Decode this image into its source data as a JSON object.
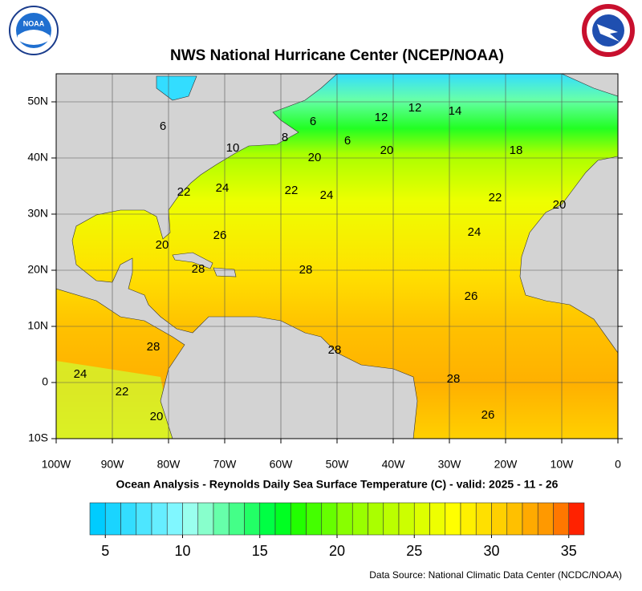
{
  "map_data": {
    "type": "sst-map",
    "title": "NWS National Hurricane Center (NCEP/NOAA)",
    "subtitle": "Ocean Analysis - Reynolds Daily Sea Surface Temperature (C) - valid: 2025 - 11 - 26",
    "source": "Data Source: National Climatic Data Center (NCDC/NOAA)",
    "logo_left": "NOAA",
    "xlim": [
      -100,
      0
    ],
    "ylim": [
      -10,
      55
    ],
    "xticks": [
      {
        "value": -100,
        "label": "100W"
      },
      {
        "value": -90,
        "label": "90W"
      },
      {
        "value": -80,
        "label": "80W"
      },
      {
        "value": -70,
        "label": "70W"
      },
      {
        "value": -60,
        "label": "60W"
      },
      {
        "value": -50,
        "label": "50W"
      },
      {
        "value": -40,
        "label": "40W"
      },
      {
        "value": -30,
        "label": "30W"
      },
      {
        "value": -20,
        "label": "20W"
      },
      {
        "value": -10,
        "label": "10W"
      },
      0
    ],
    "yticks": [
      {
        "value": 50,
        "label": "50N"
      },
      {
        "value": 40,
        "label": "40N"
      },
      {
        "value": 30,
        "label": "30N"
      },
      {
        "value": 20,
        "label": "20N"
      },
      {
        "value": 10,
        "label": "10N"
      },
      0,
      {
        "value": -10,
        "label": "10S"
      }
    ],
    "grid": true,
    "contour_labels": [
      12,
      14,
      12,
      6,
      6,
      8,
      10,
      6,
      20,
      18,
      20,
      22,
      24,
      22,
      24,
      22,
      20,
      26,
      24,
      20,
      28,
      28,
      26,
      28,
      28,
      24,
      28,
      22,
      26,
      20
    ],
    "colorbar": {
      "lim": [
        4,
        36
      ],
      "ticks": [
        5,
        10,
        15,
        20,
        25,
        30,
        35
      ],
      "colors": [
        "#00ccff",
        "#1ad4ff",
        "#33ddff",
        "#4de6ff",
        "#66eeff",
        "#80f7ff",
        "#99ffee",
        "#88ffcc",
        "#66ffaa",
        "#44ff88",
        "#22ff66",
        "#00ff44",
        "#00ff22",
        "#22ff00",
        "#44ff00",
        "#66ff00",
        "#88ff00",
        "#99ff00",
        "#aaff00",
        "#bbff00",
        "#ccff00",
        "#ddff00",
        "#eeff00",
        "#ffff00",
        "#fff000",
        "#ffe000",
        "#ffd000",
        "#ffc000",
        "#ffaa00",
        "#ff9900",
        "#ff7700",
        "#ff2200"
      ]
    }
  }
}
